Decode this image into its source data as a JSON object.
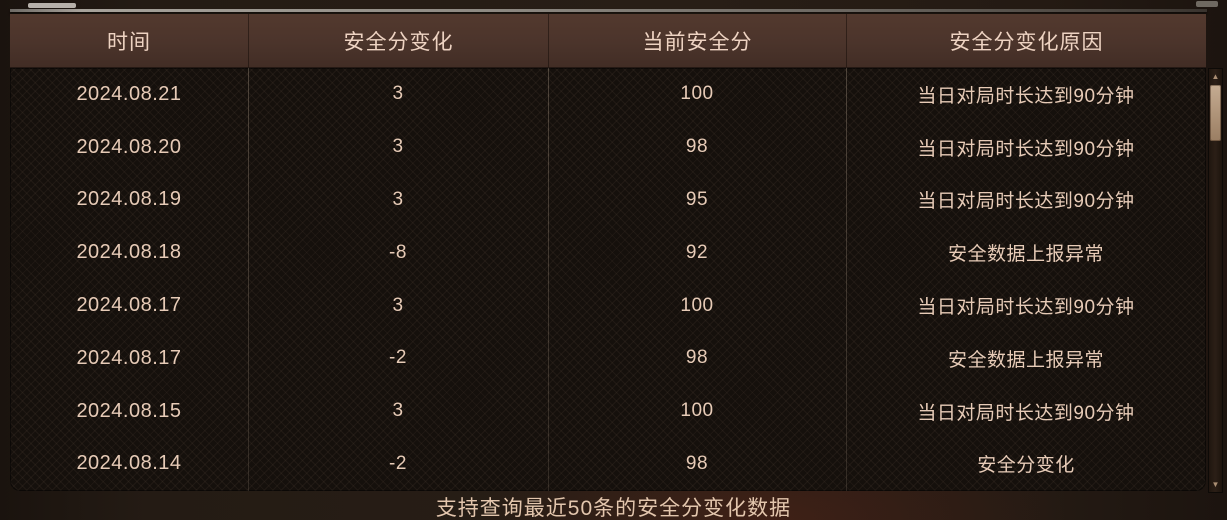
{
  "table": {
    "columns": [
      {
        "label": "时间"
      },
      {
        "label": "安全分变化"
      },
      {
        "label": "当前安全分"
      },
      {
        "label": "安全分变化原因"
      }
    ],
    "rows": [
      {
        "date": "2024.08.21",
        "change": "3",
        "score": "100",
        "reason": "当日对局时长达到90分钟"
      },
      {
        "date": "2024.08.20",
        "change": "3",
        "score": "98",
        "reason": "当日对局时长达到90分钟"
      },
      {
        "date": "2024.08.19",
        "change": "3",
        "score": "95",
        "reason": "当日对局时长达到90分钟"
      },
      {
        "date": "2024.08.18",
        "change": "-8",
        "score": "92",
        "reason": "安全数据上报异常"
      },
      {
        "date": "2024.08.17",
        "change": "3",
        "score": "100",
        "reason": "当日对局时长达到90分钟"
      },
      {
        "date": "2024.08.17",
        "change": "-2",
        "score": "98",
        "reason": "安全数据上报异常"
      },
      {
        "date": "2024.08.15",
        "change": "3",
        "score": "100",
        "reason": "当日对局时长达到90分钟"
      },
      {
        "date": "2024.08.14",
        "change": "-2",
        "score": "98",
        "reason": "安全分变化"
      }
    ]
  },
  "footer": {
    "note": "支持查询最近50条的安全分变化数据"
  },
  "icons": {
    "scroll_up": "▲",
    "scroll_down": "▼"
  },
  "colors": {
    "header_bg": "#4b342b",
    "header_text": "#eed3c2",
    "body_bg": "#15100c",
    "body_text": "#e7cbb7",
    "divider": "#c9b5a0",
    "scrollbar_thumb": "#b2977c",
    "footer_text": "#e3c6ad"
  }
}
